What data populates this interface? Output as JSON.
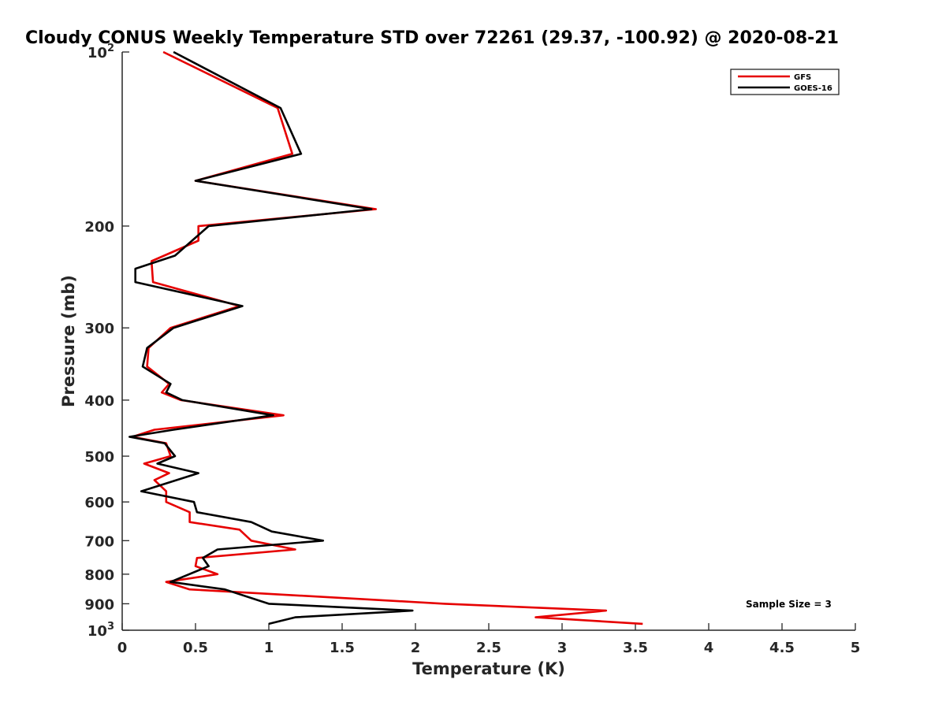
{
  "chart_data": {
    "type": "line",
    "title": "Cloudy CONUS Weekly Temperature STD over 72261 (29.37, -100.92) @ 2020-08-21",
    "xlabel": "Temperature (K)",
    "ylabel": "Pressure (mb)",
    "xlim": [
      0,
      5
    ],
    "ylim": [
      100,
      1000
    ],
    "y_scale": "log",
    "y_reversed": true,
    "x_ticks": [
      "0",
      "0.5",
      "1",
      "1.5",
      "2",
      "2.5",
      "3",
      "3.5",
      "4",
      "4.5",
      "5"
    ],
    "y_ticks": [
      {
        "value": 100,
        "base": "10",
        "exp": "2"
      },
      {
        "value": 200,
        "label": "200"
      },
      {
        "value": 300,
        "label": "300"
      },
      {
        "value": 400,
        "label": "400"
      },
      {
        "value": 500,
        "label": "500"
      },
      {
        "value": 600,
        "label": "600"
      },
      {
        "value": 700,
        "label": "700"
      },
      {
        "value": 800,
        "label": "800"
      },
      {
        "value": 900,
        "label": "900"
      },
      {
        "value": 1000,
        "base": "10",
        "exp": "3"
      }
    ],
    "grid": false,
    "legend_position": "top-right",
    "annotation": "Sample Size = 3",
    "series": [
      {
        "name": "GFS",
        "color": "#e60000",
        "points": [
          [
            0.28,
            100
          ],
          [
            1.06,
            125
          ],
          [
            1.16,
            150
          ],
          [
            0.5,
            167
          ],
          [
            1.73,
            187
          ],
          [
            0.52,
            200
          ],
          [
            0.52,
            212
          ],
          [
            0.2,
            230
          ],
          [
            0.21,
            250
          ],
          [
            0.8,
            275
          ],
          [
            0.33,
            300
          ],
          [
            0.18,
            325
          ],
          [
            0.17,
            350
          ],
          [
            0.32,
            375
          ],
          [
            0.27,
            388
          ],
          [
            0.4,
            400
          ],
          [
            1.1,
            425
          ],
          [
            0.22,
            450
          ],
          [
            0.07,
            463
          ],
          [
            0.3,
            475
          ],
          [
            0.33,
            500
          ],
          [
            0.15,
            515
          ],
          [
            0.32,
            535
          ],
          [
            0.22,
            550
          ],
          [
            0.3,
            575
          ],
          [
            0.3,
            600
          ],
          [
            0.46,
            625
          ],
          [
            0.46,
            650
          ],
          [
            0.8,
            670
          ],
          [
            0.88,
            700
          ],
          [
            1.18,
            725
          ],
          [
            0.51,
            750
          ],
          [
            0.5,
            775
          ],
          [
            0.65,
            800
          ],
          [
            0.3,
            825
          ],
          [
            0.46,
            850
          ],
          [
            2.2,
            900
          ],
          [
            3.3,
            925
          ],
          [
            2.82,
            950
          ],
          [
            3.55,
            975
          ]
        ]
      },
      {
        "name": "GOES-16",
        "color": "#000000",
        "points": [
          [
            0.35,
            100
          ],
          [
            1.08,
            125
          ],
          [
            1.22,
            150
          ],
          [
            0.5,
            167
          ],
          [
            1.7,
            187
          ],
          [
            0.59,
            200
          ],
          [
            0.36,
            225
          ],
          [
            0.09,
            237
          ],
          [
            0.09,
            250
          ],
          [
            0.82,
            275
          ],
          [
            0.35,
            300
          ],
          [
            0.17,
            325
          ],
          [
            0.14,
            350
          ],
          [
            0.33,
            375
          ],
          [
            0.3,
            388
          ],
          [
            0.41,
            400
          ],
          [
            1.03,
            425
          ],
          [
            0.35,
            450
          ],
          [
            0.05,
            463
          ],
          [
            0.29,
            475
          ],
          [
            0.36,
            500
          ],
          [
            0.24,
            515
          ],
          [
            0.52,
            535
          ],
          [
            0.13,
            575
          ],
          [
            0.49,
            600
          ],
          [
            0.51,
            625
          ],
          [
            0.88,
            650
          ],
          [
            1.02,
            675
          ],
          [
            1.37,
            700
          ],
          [
            0.65,
            725
          ],
          [
            0.55,
            750
          ],
          [
            0.59,
            775
          ],
          [
            0.33,
            825
          ],
          [
            0.7,
            850
          ],
          [
            1.0,
            900
          ],
          [
            1.98,
            925
          ],
          [
            1.18,
            950
          ],
          [
            1.0,
            975
          ]
        ]
      }
    ]
  }
}
